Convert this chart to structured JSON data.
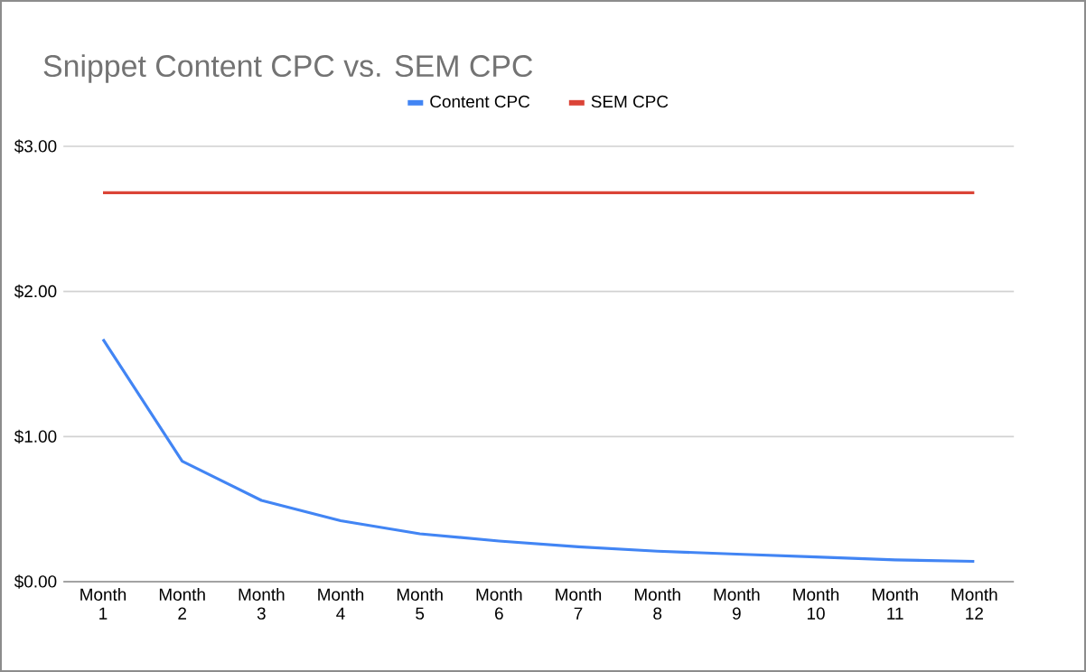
{
  "chart_data": {
    "type": "line",
    "title": "Snippet Content CPC vs. SEM CPC",
    "categories": [
      "Month 1",
      "Month 2",
      "Month 3",
      "Month 4",
      "Month 5",
      "Month 6",
      "Month 7",
      "Month 8",
      "Month 9",
      "Month 10",
      "Month 11",
      "Month 12"
    ],
    "series": [
      {
        "name": "Content CPC",
        "color": "#4285f4",
        "values": [
          1.67,
          0.83,
          0.56,
          0.42,
          0.33,
          0.28,
          0.24,
          0.21,
          0.19,
          0.17,
          0.15,
          0.14
        ]
      },
      {
        "name": "SEM CPC",
        "color": "#db4437",
        "values": [
          2.68,
          2.68,
          2.68,
          2.68,
          2.68,
          2.68,
          2.68,
          2.68,
          2.68,
          2.68,
          2.68,
          2.68
        ]
      }
    ],
    "ylim": [
      0,
      3
    ],
    "yticks": [
      {
        "value": 0,
        "label": "$0.00"
      },
      {
        "value": 1,
        "label": "$1.00"
      },
      {
        "value": 2,
        "label": "$2.00"
      },
      {
        "value": 3,
        "label": "$3.00"
      }
    ],
    "grid": "y",
    "legend": "top",
    "marker": "none",
    "line_style": "solid"
  }
}
